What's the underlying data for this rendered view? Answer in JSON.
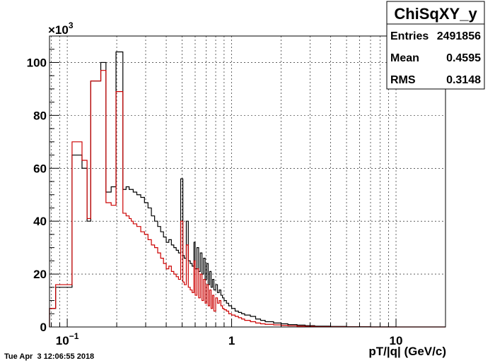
{
  "chart_data": {
    "type": "histogram",
    "title": "ChiSqXY_y",
    "xlabel": "pT/|q| (GeV/c)",
    "ylabel": "",
    "x_scale": "log",
    "xlim": [
      0.078,
      20
    ],
    "ylim": [
      0,
      110000
    ],
    "y_multiplier_label": "×10",
    "y_multiplier_exp": "3",
    "x_ticks": [
      {
        "value": 0.1,
        "base": "10",
        "exp": "−1"
      },
      {
        "value": 1,
        "base": "1",
        "exp": ""
      },
      {
        "value": 10,
        "base": "10",
        "exp": ""
      }
    ],
    "y_ticks": [
      {
        "value": 0,
        "label": "0"
      },
      {
        "value": 20000,
        "label": "20"
      },
      {
        "value": 40000,
        "label": "40"
      },
      {
        "value": 60000,
        "label": "60"
      },
      {
        "value": 80000,
        "label": "80"
      },
      {
        "value": 100000,
        "label": "100"
      }
    ],
    "grid": true,
    "stats": {
      "title": "ChiSqXY_y",
      "rows": [
        {
          "label": "Entries",
          "value": "2491856"
        },
        {
          "label": "Mean",
          "value": "0.4595"
        },
        {
          "label": "RMS",
          "value": "0.3148"
        }
      ]
    },
    "series": [
      {
        "color": "#000000",
        "x": [
          0.078,
          0.085,
          0.107,
          0.123,
          0.132,
          0.139,
          0.16,
          0.172,
          0.185,
          0.198,
          0.218,
          0.228,
          0.238,
          0.245,
          0.252,
          0.265,
          0.28,
          0.295,
          0.31,
          0.325,
          0.34,
          0.355,
          0.37,
          0.385,
          0.4,
          0.415,
          0.43,
          0.445,
          0.46,
          0.475,
          0.49,
          0.505,
          0.515,
          0.53,
          0.545,
          0.56,
          0.575,
          0.59,
          0.6,
          0.615,
          0.63,
          0.645,
          0.66,
          0.675,
          0.69,
          0.705,
          0.72,
          0.735,
          0.75,
          0.765,
          0.78,
          0.8,
          0.82,
          0.84,
          0.86,
          0.88,
          0.9,
          0.93,
          0.96,
          1.0,
          1.05,
          1.1,
          1.15,
          1.2,
          1.3,
          1.4,
          1.5,
          1.6,
          1.8,
          2.0,
          2.2,
          2.5,
          2.8,
          3.2,
          4.0,
          5.0,
          7.0,
          10.0,
          20.0
        ],
        "values": [
          7000,
          15000,
          65000,
          60000,
          40000,
          93000,
          100000,
          51000,
          53000,
          104000,
          52000,
          53000,
          52000,
          52000,
          51000,
          50000,
          49000,
          47000,
          45000,
          42000,
          40000,
          38000,
          36000,
          34000,
          32000,
          33000,
          31000,
          30000,
          29000,
          28000,
          56000,
          27000,
          26000,
          40000,
          25000,
          24000,
          23000,
          32000,
          22000,
          30000,
          21000,
          28000,
          20000,
          26000,
          18000,
          24000,
          16000,
          21000,
          15000,
          18000,
          14000,
          16000,
          13000,
          14000,
          12000,
          11000,
          10000,
          9000,
          8000,
          7000,
          6000,
          5500,
          5000,
          4500,
          4000,
          3000,
          2500,
          2000,
          1500,
          1200,
          900,
          700,
          500,
          300,
          200,
          100,
          50,
          20
        ]
      },
      {
        "color": "#cc0000",
        "x": [
          0.078,
          0.085,
          0.107,
          0.123,
          0.132,
          0.139,
          0.16,
          0.172,
          0.185,
          0.198,
          0.218,
          0.228,
          0.238,
          0.245,
          0.252,
          0.265,
          0.28,
          0.295,
          0.31,
          0.325,
          0.34,
          0.355,
          0.37,
          0.385,
          0.4,
          0.415,
          0.43,
          0.445,
          0.46,
          0.475,
          0.49,
          0.505,
          0.515,
          0.53,
          0.545,
          0.56,
          0.575,
          0.59,
          0.6,
          0.615,
          0.63,
          0.645,
          0.66,
          0.675,
          0.69,
          0.705,
          0.72,
          0.735,
          0.75,
          0.765,
          0.78,
          0.8,
          0.82,
          0.84,
          0.86,
          0.88,
          0.9,
          0.93,
          0.96,
          1.0,
          1.05,
          1.1,
          1.15,
          1.2,
          1.3,
          1.4,
          1.5,
          1.6,
          1.8,
          2.0,
          2.2,
          2.5,
          2.8,
          3.2,
          4.0,
          5.0,
          7.0,
          10.0,
          20.0
        ],
        "values": [
          7000,
          16000,
          70000,
          63000,
          41000,
          93000,
          97000,
          47000,
          46000,
          89000,
          43000,
          42000,
          41000,
          40000,
          39000,
          38000,
          36000,
          35000,
          33000,
          31000,
          30000,
          28000,
          26000,
          24000,
          22000,
          23000,
          21000,
          20000,
          19000,
          18000,
          40000,
          17000,
          16000,
          31000,
          15000,
          14000,
          13000,
          25000,
          12000,
          22000,
          11000,
          20000,
          10000,
          18000,
          9000,
          16000,
          8000,
          14000,
          7000,
          12000,
          6000,
          11000,
          9000,
          10000,
          8000,
          7000,
          6500,
          6000,
          5000,
          4500,
          4000,
          3500,
          3000,
          2500,
          2000,
          1500,
          1200,
          1000,
          800,
          600,
          450,
          300,
          200,
          120,
          60,
          30,
          10,
          0
        ]
      }
    ]
  },
  "timestamp": "Tue Apr  3 12:06:55 2018"
}
